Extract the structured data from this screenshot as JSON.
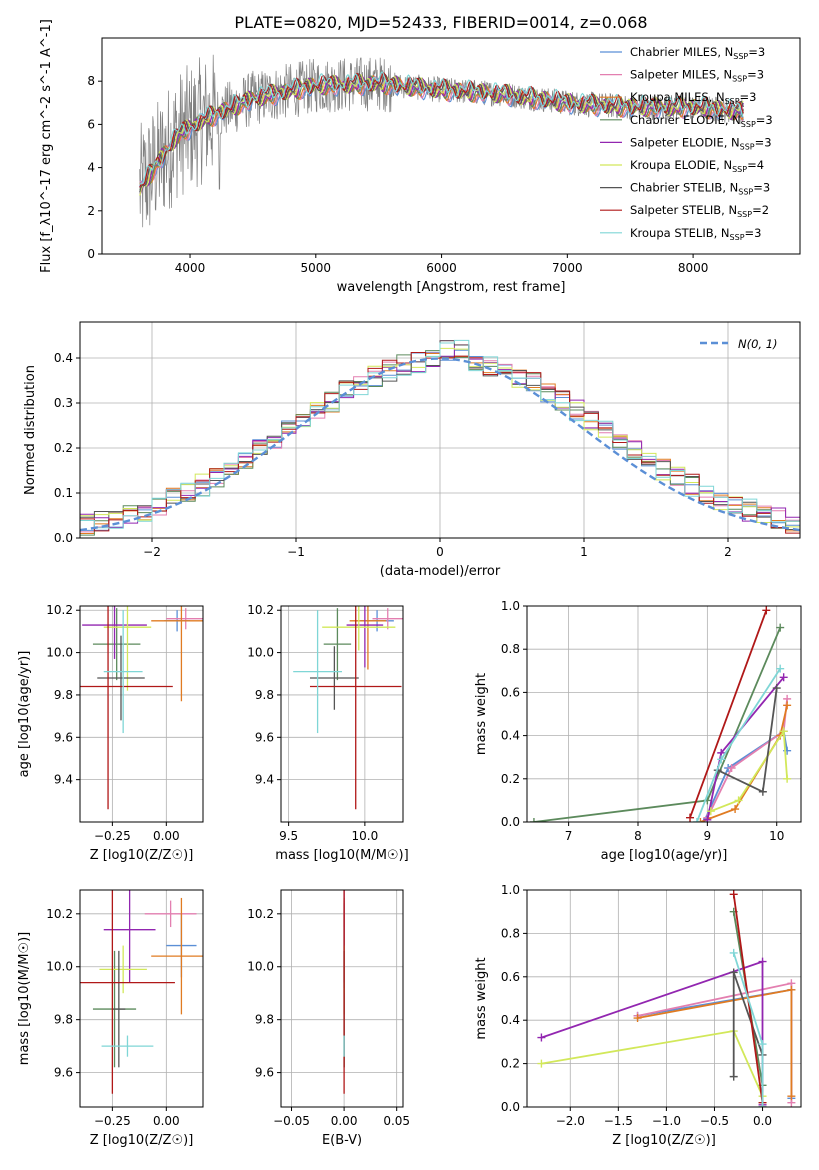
{
  "figure": {
    "title": "PLATE=0820, MJD=52433, FIBERID=0014, z=0.068"
  },
  "models": [
    {
      "name": "Chabrier MILES",
      "nssp": "3",
      "color": "#5b8fd6"
    },
    {
      "name": "Salpeter MILES",
      "nssp": "3",
      "color": "#e37fb0"
    },
    {
      "name": "Kroupa MILES",
      "nssp": "3",
      "color": "#e07b22"
    },
    {
      "name": "Chabrier ELODIE",
      "nssp": "3",
      "color": "#5c8a5c"
    },
    {
      "name": "Salpeter ELODIE",
      "nssp": "3",
      "color": "#9226b0"
    },
    {
      "name": "Kroupa ELODIE",
      "nssp": "4",
      "color": "#d2e85a"
    },
    {
      "name": "Chabrier STELIB",
      "nssp": "3",
      "color": "#555555"
    },
    {
      "name": "Salpeter STELIB",
      "nssp": "2",
      "color": "#b01818"
    },
    {
      "name": "Kroupa STELIB",
      "nssp": "3",
      "color": "#7fd6d6"
    }
  ],
  "chart_data": [
    {
      "id": "spectrum",
      "type": "line",
      "xlabel": "wavelength [Angstrom, rest frame]",
      "ylabel": "Flux [f_λ10^-17 erg cm^-2 s^-1 A^-1]",
      "xlim": [
        3300,
        8850
      ],
      "ylim": [
        0,
        10
      ],
      "xticks": [
        4000,
        5000,
        6000,
        7000,
        8000
      ],
      "yticks": [
        0,
        2,
        4,
        6,
        8
      ],
      "data_color": "#808080",
      "continuum_points": [
        [
          3600,
          3.0
        ],
        [
          3900,
          5.5
        ],
        [
          4100,
          6.2
        ],
        [
          4500,
          7.2
        ],
        [
          5000,
          7.8
        ],
        [
          5500,
          7.9
        ],
        [
          6000,
          7.6
        ],
        [
          6500,
          7.4
        ],
        [
          7000,
          7.0
        ],
        [
          7500,
          6.8
        ],
        [
          8000,
          6.8
        ],
        [
          8400,
          6.6
        ]
      ],
      "legend_placement": "upper right",
      "legend_prefix": "N",
      "legend_subscript": "SSP"
    },
    {
      "id": "residuals",
      "type": "line",
      "xlabel": "(data-model)/error",
      "ylabel": "Normed distribution",
      "xlim": [
        -2.5,
        2.5
      ],
      "ylim": [
        0,
        0.48
      ],
      "xticks": [
        -2,
        -1,
        0,
        1,
        2
      ],
      "yticks": [
        0.0,
        0.1,
        0.2,
        0.3,
        0.4
      ],
      "gaussian_label": "N(0, 1)",
      "gaussian_color": "#5b8fd6",
      "bin_width": 0.1
    },
    {
      "id": "age-vs-Z",
      "type": "scatter",
      "xlabel": "Z [log10(Z/Z☉)]",
      "ylabel": "age [log10(age/yr)]",
      "xlim": [
        -0.4,
        0.17
      ],
      "ylim": [
        9.2,
        10.22
      ],
      "xticks": [
        -0.25,
        0.0
      ],
      "yticks": [
        9.4,
        9.6,
        9.8,
        10.0,
        10.2
      ],
      "points": [
        {
          "x": 0.05,
          "y": 10.15,
          "xerr": 0.06,
          "yerr": 0.05,
          "model": 0
        },
        {
          "x": 0.09,
          "y": 10.16,
          "xerr": 0.09,
          "yerr": 0.05,
          "model": 1
        },
        {
          "x": 0.07,
          "y": 10.15,
          "xerr": 0.14,
          "yerr": 0.38,
          "model": 2
        },
        {
          "x": -0.23,
          "y": 10.04,
          "xerr": 0.11,
          "yerr": 0.17,
          "model": 3
        },
        {
          "x": -0.24,
          "y": 10.13,
          "xerr": 0.15,
          "yerr": 0.16,
          "model": 4
        },
        {
          "x": -0.18,
          "y": 10.12,
          "xerr": 0.11,
          "yerr": 0.3,
          "model": 5
        },
        {
          "x": -0.21,
          "y": 9.88,
          "xerr": 0.11,
          "yerr": 0.2,
          "model": 6
        },
        {
          "x": -0.27,
          "y": 9.84,
          "xerr": 0.3,
          "yerr": 0.58,
          "model": 7
        },
        {
          "x": -0.2,
          "y": 9.91,
          "xerr": 0.09,
          "yerr": 0.29,
          "model": 8
        }
      ]
    },
    {
      "id": "age-vs-mass",
      "type": "scatter",
      "xlabel": "mass [log10(M/M☉)]",
      "ylabel": "",
      "xlim": [
        9.45,
        10.25
      ],
      "ylim": [
        9.2,
        10.22
      ],
      "xticks": [
        9.5,
        10.0
      ],
      "yticks": [
        9.4,
        9.6,
        9.8,
        10.0,
        10.2
      ],
      "points": [
        {
          "x": 10.08,
          "y": 10.15,
          "xerr": 0.11,
          "yerr": 0.05,
          "model": 0
        },
        {
          "x": 10.15,
          "y": 10.16,
          "xerr": 0.1,
          "yerr": 0.05,
          "model": 1
        },
        {
          "x": 10.02,
          "y": 10.15,
          "xerr": 0.12,
          "yerr": 0.23,
          "model": 2
        },
        {
          "x": 9.82,
          "y": 10.04,
          "xerr": 0.09,
          "yerr": 0.17,
          "model": 3
        },
        {
          "x": 10.0,
          "y": 10.13,
          "xerr": 0.12,
          "yerr": 0.2,
          "model": 4
        },
        {
          "x": 9.96,
          "y": 10.12,
          "xerr": 0.24,
          "yerr": 0.11,
          "model": 5
        },
        {
          "x": 9.8,
          "y": 9.88,
          "xerr": 0.16,
          "yerr": 0.15,
          "model": 6
        },
        {
          "x": 9.94,
          "y": 9.84,
          "xerr": 0.3,
          "yerr": 0.58,
          "model": 7
        },
        {
          "x": 9.69,
          "y": 9.91,
          "xerr": 0.16,
          "yerr": 0.29,
          "model": 8
        }
      ]
    },
    {
      "id": "massweight-vs-age",
      "type": "line",
      "xlabel": "age [log10(age/yr)]",
      "ylabel": "mass weight",
      "xlim": [
        6.4,
        10.35
      ],
      "ylim": [
        0,
        1.0
      ],
      "xticks": [
        7,
        8,
        9,
        10
      ],
      "yticks": [
        0.0,
        0.2,
        0.4,
        0.6,
        0.8,
        1.0
      ],
      "series": [
        {
          "model": 0,
          "points": [
            [
              8.95,
              0.0
            ],
            [
              9.3,
              0.25
            ],
            [
              10.1,
              0.42
            ],
            [
              10.15,
              0.33
            ]
          ]
        },
        {
          "model": 1,
          "points": [
            [
              9.0,
              0.02
            ],
            [
              9.35,
              0.25
            ],
            [
              10.1,
              0.42
            ],
            [
              10.15,
              0.57
            ]
          ]
        },
        {
          "model": 2,
          "points": [
            [
              8.9,
              0.0
            ],
            [
              9.4,
              0.06
            ],
            [
              10.05,
              0.4
            ],
            [
              10.15,
              0.54
            ]
          ]
        },
        {
          "model": 3,
          "points": [
            [
              6.5,
              0.0
            ],
            [
              9.0,
              0.1
            ],
            [
              10.05,
              0.9
            ]
          ]
        },
        {
          "model": 4,
          "points": [
            [
              9.0,
              0.01
            ],
            [
              9.2,
              0.32
            ],
            [
              10.1,
              0.67
            ]
          ]
        },
        {
          "model": 5,
          "points": [
            [
              9.05,
              0.05
            ],
            [
              9.45,
              0.1
            ],
            [
              10.1,
              0.42
            ],
            [
              10.15,
              0.2
            ]
          ]
        },
        {
          "model": 6,
          "points": [
            [
              9.15,
              0.24
            ],
            [
              9.8,
              0.14
            ],
            [
              10.0,
              0.62
            ]
          ]
        },
        {
          "model": 7,
          "points": [
            [
              8.75,
              0.02
            ],
            [
              9.85,
              0.98
            ]
          ]
        },
        {
          "model": 8,
          "points": [
            [
              8.85,
              0.0
            ],
            [
              9.2,
              0.29
            ],
            [
              10.05,
              0.71
            ]
          ]
        }
      ]
    },
    {
      "id": "mass-vs-Z",
      "type": "scatter",
      "xlabel": "Z [log10(Z/Z☉)]",
      "ylabel": "mass [log10(M/M☉)]",
      "xlim": [
        -0.4,
        0.17
      ],
      "ylim": [
        9.47,
        10.29
      ],
      "xticks": [
        -0.25,
        0.0
      ],
      "yticks": [
        9.6,
        9.8,
        10.0,
        10.2
      ],
      "points": [
        {
          "x": 0.07,
          "y": 10.08,
          "xerr": 0.07,
          "yerr": 0.12,
          "model": 0
        },
        {
          "x": 0.02,
          "y": 10.2,
          "xerr": 0.12,
          "yerr": 0.05,
          "model": 1
        },
        {
          "x": 0.07,
          "y": 10.04,
          "xerr": 0.14,
          "yerr": 0.22,
          "model": 2
        },
        {
          "x": -0.24,
          "y": 9.84,
          "xerr": 0.1,
          "yerr": 0.22,
          "model": 3
        },
        {
          "x": -0.17,
          "y": 10.14,
          "xerr": 0.12,
          "yerr": 0.2,
          "model": 4
        },
        {
          "x": -0.2,
          "y": 9.99,
          "xerr": 0.11,
          "yerr": 0.09,
          "model": 5
        },
        {
          "x": -0.22,
          "y": 9.84,
          "xerr": 0.03,
          "yerr": 0.22,
          "model": 6
        },
        {
          "x": -0.25,
          "y": 9.94,
          "xerr": 0.29,
          "yerr": 0.42,
          "model": 7
        },
        {
          "x": -0.18,
          "y": 9.7,
          "xerr": 0.12,
          "yerr": 0.04,
          "model": 8
        }
      ]
    },
    {
      "id": "mass-vs-ebv",
      "type": "scatter",
      "xlabel": "E(B-V)",
      "ylabel": "",
      "xlim": [
        -0.06,
        0.056
      ],
      "ylim": [
        9.47,
        10.29
      ],
      "xticks": [
        -0.05,
        0.0,
        0.05
      ],
      "yticks": [
        9.6,
        9.8,
        10.0,
        10.2
      ],
      "points": [
        {
          "x": 0.0,
          "y": 10.08,
          "xerr": 0,
          "yerr": 0.16,
          "model": 0
        },
        {
          "x": 0.0,
          "y": 10.2,
          "xerr": 0,
          "yerr": 0.05,
          "model": 1
        },
        {
          "x": 0.0,
          "y": 10.04,
          "xerr": 0,
          "yerr": 0.22,
          "model": 2
        },
        {
          "x": 0.0,
          "y": 9.84,
          "xerr": 0,
          "yerr": 0.22,
          "model": 3
        },
        {
          "x": 0.0,
          "y": 10.14,
          "xerr": 0,
          "yerr": 0.2,
          "model": 4
        },
        {
          "x": 0.0,
          "y": 9.99,
          "xerr": 0,
          "yerr": 0.09,
          "model": 5
        },
        {
          "x": 0.0,
          "y": 9.84,
          "xerr": 0,
          "yerr": 0.22,
          "model": 6
        },
        {
          "x": 0.0,
          "y": 9.94,
          "xerr": 0,
          "yerr": 0.42,
          "model": 7
        },
        {
          "x": 0.0,
          "y": 9.7,
          "xerr": 0,
          "yerr": 0.04,
          "model": 8
        }
      ]
    },
    {
      "id": "massweight-vs-Z",
      "type": "line",
      "xlabel": "Z [log10(Z/Z☉)]",
      "ylabel": "mass weight",
      "xlim": [
        -2.45,
        0.4
      ],
      "ylim": [
        0,
        1.0
      ],
      "xticks": [
        -2.0,
        -1.5,
        -1.0,
        -0.5,
        0.0
      ],
      "yticks": [
        0.0,
        0.2,
        0.4,
        0.6,
        0.8,
        1.0
      ],
      "series": [
        {
          "model": 0,
          "points": [
            [
              -1.3,
              0.42
            ],
            [
              0.3,
              0.54
            ],
            [
              0.3,
              0.04
            ]
          ]
        },
        {
          "model": 1,
          "points": [
            [
              -1.3,
              0.42
            ],
            [
              0.3,
              0.57
            ],
            [
              0.3,
              0.02
            ]
          ]
        },
        {
          "model": 2,
          "points": [
            [
              -1.3,
              0.41
            ],
            [
              0.3,
              0.54
            ],
            [
              0.3,
              0.05
            ]
          ]
        },
        {
          "model": 3,
          "points": [
            [
              -0.3,
              0.9
            ],
            [
              0.0,
              0.1
            ],
            [
              0.0,
              0.0
            ]
          ]
        },
        {
          "model": 4,
          "points": [
            [
              -2.3,
              0.32
            ],
            [
              0.0,
              0.67
            ],
            [
              0.0,
              0.01
            ]
          ]
        },
        {
          "model": 5,
          "points": [
            [
              -2.3,
              0.2
            ],
            [
              -0.3,
              0.35
            ],
            [
              0.0,
              0.05
            ]
          ]
        },
        {
          "model": 6,
          "points": [
            [
              -0.3,
              0.14
            ],
            [
              -0.3,
              0.62
            ],
            [
              0.0,
              0.24
            ]
          ]
        },
        {
          "model": 7,
          "points": [
            [
              -0.3,
              0.98
            ],
            [
              0.0,
              0.02
            ]
          ]
        },
        {
          "model": 8,
          "points": [
            [
              -0.3,
              0.71
            ],
            [
              0.0,
              0.29
            ],
            [
              0.0,
              0.0
            ]
          ]
        }
      ]
    }
  ]
}
